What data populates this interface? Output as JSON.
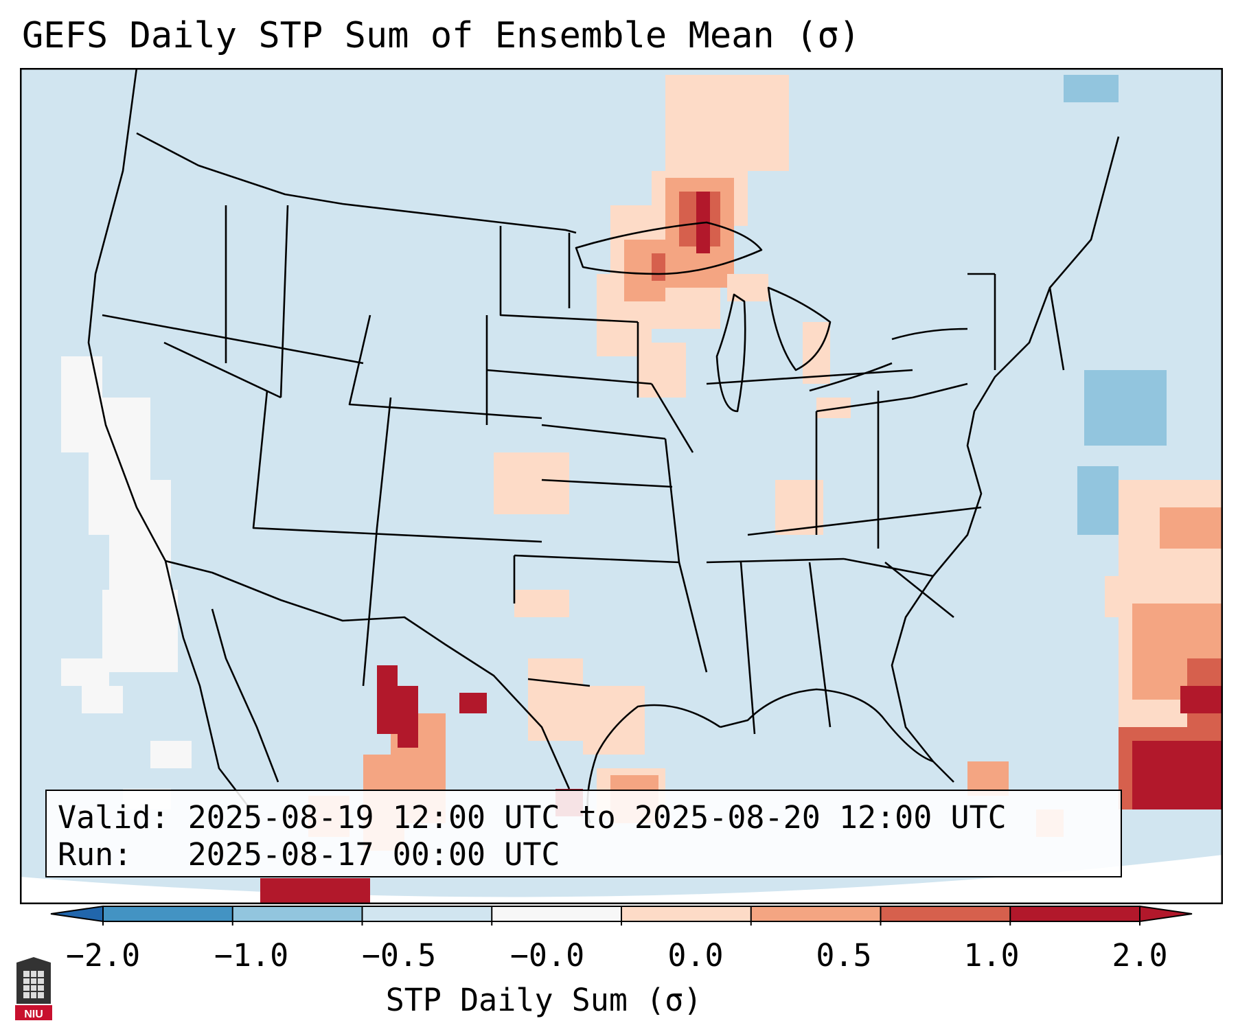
{
  "title": "GEFS Daily STP Sum of Ensemble Mean (σ)",
  "info": {
    "valid_prefix": "Valid:",
    "valid_text": "2025-08-19 12:00 UTC to 2025-08-20 12:00 UTC",
    "run_prefix": "Run:",
    "run_text": "2025-08-17 00:00 UTC"
  },
  "colorbar": {
    "label": "STP Daily Sum (σ)",
    "ticks": [
      "−2.0",
      "−1.0",
      "−0.5",
      "−0.0",
      "0.0",
      "0.5",
      "1.0",
      "2.0"
    ],
    "colors": [
      "#4393c3",
      "#92c5de",
      "#d1e5f0",
      "#f7f7f7",
      "#fddbc7",
      "#f4a582",
      "#d6604d",
      "#b2182b"
    ],
    "extend_low_color": "#2166ac",
    "extend_high_color": "#b2182b"
  },
  "map_colors": {
    "background": "#d1e5f0",
    "outside": "#ffffff",
    "border": "#000000"
  },
  "logo": {
    "text": "NIU",
    "color": "#c8102e"
  },
  "icons": {
    "logo": "niu-logo-icon"
  }
}
